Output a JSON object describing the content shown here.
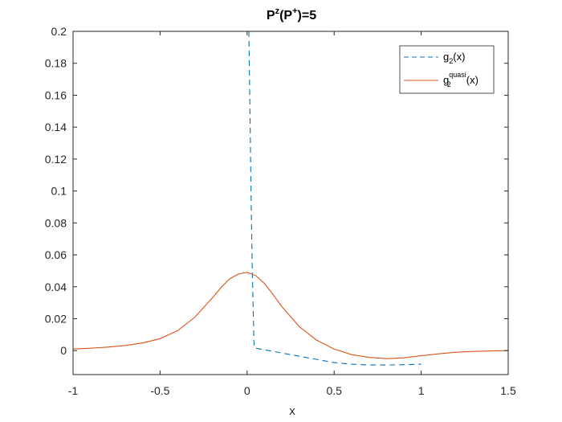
{
  "chart_data": {
    "type": "line",
    "title": {
      "base": "P",
      "sup1": "z",
      "middle": "(P",
      "sup2": "+",
      "end": ")=5"
    },
    "xlabel": "x",
    "ylabel": "",
    "xlim": [
      -1,
      1.5
    ],
    "ylim": [
      -0.015,
      0.2
    ],
    "x_ticks": [
      -1,
      -0.5,
      0,
      0.5,
      1,
      1.5
    ],
    "x_tick_labels": [
      "-1",
      "-0.5",
      "0",
      "0.5",
      "1",
      "1.5"
    ],
    "y_ticks": [
      0,
      0.02,
      0.04,
      0.06,
      0.08,
      0.1,
      0.12,
      0.14,
      0.16,
      0.18,
      0.2
    ],
    "y_tick_labels": [
      "0",
      "0.02",
      "0.04",
      "0.06",
      "0.08",
      "0.1",
      "0.12",
      "0.14",
      "0.16",
      "0.18",
      "0.2"
    ],
    "grid": false,
    "legend_position": "top-right",
    "series": [
      {
        "name": "g2(x)",
        "legend": {
          "base": "g",
          "sub": "2",
          "sup": "",
          "tail": "(x)"
        },
        "color": "#0072BD",
        "style": "dashed",
        "x": [
          0.01,
          0.015,
          0.02,
          0.025,
          0.03,
          0.035,
          0.04,
          0.05,
          0.1,
          0.2,
          0.3,
          0.4,
          0.5,
          0.6,
          0.7,
          0.8,
          0.9,
          1.0
        ],
        "y": [
          0.2,
          0.16,
          0.12,
          0.08,
          0.05,
          0.025,
          0.002,
          0.0015,
          0.0005,
          -0.0015,
          -0.0035,
          -0.0055,
          -0.0075,
          -0.0085,
          -0.009,
          -0.009,
          -0.0088,
          -0.0085
        ]
      },
      {
        "name": "g2quasi(x)",
        "legend": {
          "base": "g",
          "sub": "2",
          "sup": "quasi",
          "tail": "(x)"
        },
        "color": "#D95319",
        "style": "solid",
        "x": [
          -1.0,
          -0.9,
          -0.8,
          -0.7,
          -0.6,
          -0.5,
          -0.4,
          -0.3,
          -0.2,
          -0.15,
          -0.1,
          -0.05,
          0.0,
          0.05,
          0.1,
          0.15,
          0.2,
          0.3,
          0.4,
          0.5,
          0.6,
          0.7,
          0.8,
          0.9,
          1.0,
          1.1,
          1.2,
          1.3,
          1.4,
          1.5
        ],
        "y": [
          0.001,
          0.0015,
          0.0022,
          0.0032,
          0.0048,
          0.0075,
          0.0125,
          0.021,
          0.033,
          0.0395,
          0.045,
          0.048,
          0.049,
          0.047,
          0.042,
          0.035,
          0.0275,
          0.015,
          0.0065,
          0.001,
          -0.0025,
          -0.0042,
          -0.005,
          -0.0045,
          -0.0032,
          -0.002,
          -0.001,
          -0.0005,
          -0.0002,
          0.0
        ]
      }
    ]
  }
}
